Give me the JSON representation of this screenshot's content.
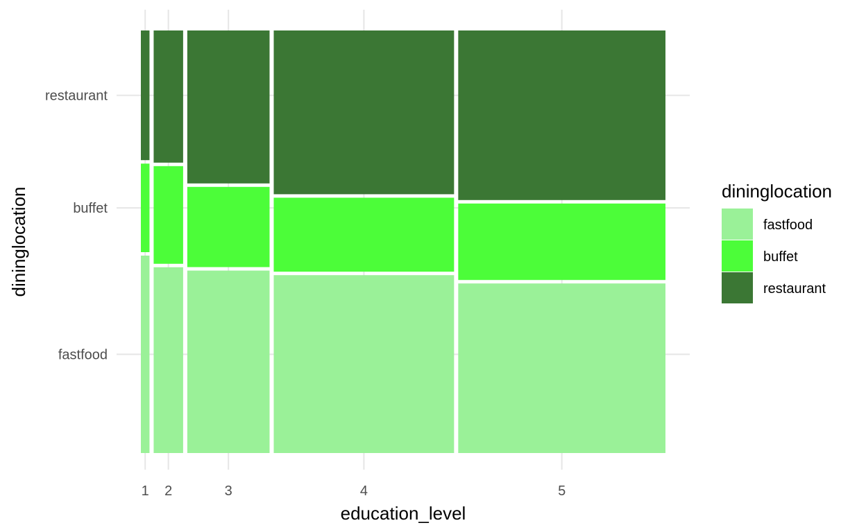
{
  "chart_data": {
    "type": "mosaic",
    "title": "",
    "xlabel": "education_level",
    "ylabel": "dininglocation",
    "x_categories": [
      "1",
      "2",
      "3",
      "4",
      "5"
    ],
    "x_proportions": [
      0.017,
      0.058,
      0.162,
      0.355,
      0.408
    ],
    "y_categories": [
      "fastfood",
      "buffet",
      "restaurant"
    ],
    "series": [
      {
        "name": "fastfood",
        "values": [
          0.475,
          0.447,
          0.439,
          0.428,
          0.408
        ]
      },
      {
        "name": "buffet",
        "values": [
          0.213,
          0.235,
          0.193,
          0.178,
          0.184
        ]
      },
      {
        "name": "restaurant",
        "values": [
          0.312,
          0.318,
          0.368,
          0.394,
          0.408
        ]
      }
    ],
    "colors": {
      "fastfood": "#9af198",
      "buffet": "#4cfd39",
      "restaurant": "#3b7734"
    },
    "grid": true,
    "legend": {
      "title": "dininglocation",
      "position": "right",
      "items": [
        {
          "label": "fastfood",
          "color": "#9af198"
        },
        {
          "label": "buffet",
          "color": "#4cfd39"
        },
        {
          "label": "restaurant",
          "color": "#3b7734"
        }
      ]
    }
  }
}
